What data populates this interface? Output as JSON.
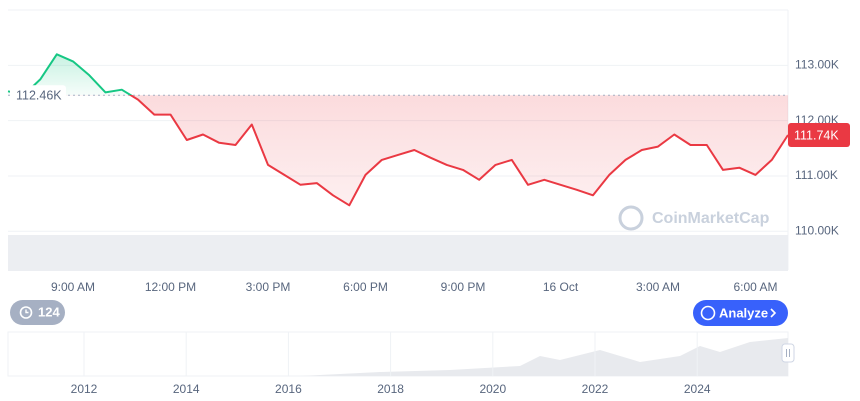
{
  "chart_data": {
    "type": "line",
    "x": [
      7,
      7.5,
      8,
      8.5,
      9,
      9.5,
      10,
      10.5,
      11,
      11.5,
      12,
      12.5,
      13,
      13.5,
      14,
      14.5,
      15,
      15.5,
      16,
      16.5,
      17,
      17.5,
      18,
      18.5,
      19,
      19.5,
      20,
      20.5,
      21,
      21.5,
      22,
      22.5,
      23,
      23.5,
      24,
      24.5,
      25,
      25.5,
      26,
      26.5,
      27,
      27.5,
      28,
      28.5,
      29,
      29.5,
      30,
      30.5,
      31
    ],
    "series": [
      {
        "values": [
          112.53,
          112.47,
          112.75,
          113.2,
          113.07,
          112.82,
          112.51,
          112.56,
          112.38,
          112.11,
          112.11,
          111.65,
          111.75,
          111.6,
          111.56,
          111.93,
          111.2,
          111.02,
          110.84,
          110.87,
          110.65,
          110.47,
          111.02,
          111.29,
          111.38,
          111.47,
          111.33,
          111.2,
          111.11,
          110.93,
          111.2,
          111.29,
          110.84,
          110.93,
          110.84,
          110.75,
          110.65,
          111.02,
          111.29,
          111.47,
          111.53,
          111.75,
          111.56,
          111.56,
          111.11,
          111.15,
          111.02,
          111.29,
          111.74
        ],
        "color_up": "#16c784",
        "color_down": "#ea3943"
      }
    ],
    "baseline": {
      "value": 112.46,
      "label": "112.46K"
    },
    "current": {
      "value": 111.74,
      "label": "111.74K"
    },
    "xlim": [
      7,
      31
    ],
    "xticks": [
      {
        "value": 9,
        "label": "9:00 AM"
      },
      {
        "value": 12,
        "label": "12:00 PM"
      },
      {
        "value": 15,
        "label": "3:00 PM"
      },
      {
        "value": 18,
        "label": "6:00 PM"
      },
      {
        "value": 21,
        "label": "9:00 PM"
      },
      {
        "value": 24,
        "label": "16 Oct"
      },
      {
        "value": 27,
        "label": "3:00 AM"
      },
      {
        "value": 30,
        "label": "6:00 AM"
      }
    ],
    "ylim": [
      109.3,
      114.0
    ],
    "yticks": [
      {
        "value": 110,
        "label": "110.00K"
      },
      {
        "value": 111,
        "label": "111.00K"
      },
      {
        "value": 112,
        "label": "112.00K"
      },
      {
        "value": 113,
        "label": "113.00K"
      }
    ],
    "grid": true
  },
  "watermark": "CoinMarketCap",
  "buttons": {
    "history": "124",
    "analyze": "Analyze"
  },
  "navigator": {
    "labels": [
      "2012",
      "2014",
      "2016",
      "2018",
      "2020",
      "2022",
      "2024"
    ]
  }
}
